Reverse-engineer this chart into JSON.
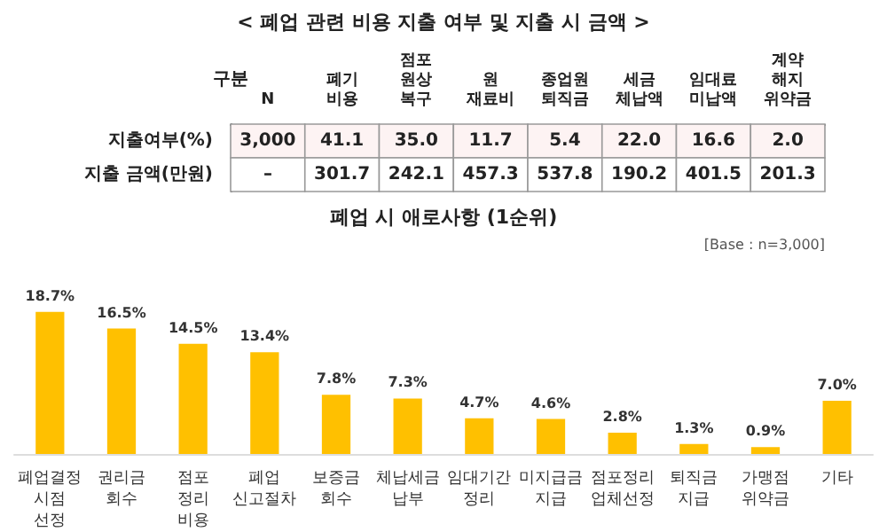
{
  "chart_data": [
    {
      "type": "other",
      "title": "< 폐업 관련 비용 지출 여부 및 지출 시 금액 >",
      "ylabel": "구분",
      "categories": [
        "N",
        "폐기\n비용",
        "점포\n원상\n복구",
        "원\n재료비",
        "종업원\n퇴직금",
        "세금\n체납액",
        "임대료\n미납액",
        "계약\n해지\n위약금"
      ],
      "y_categories": [
        "지출여부(%)",
        "지출 금액(만원)"
      ],
      "cells": [
        [
          "3,000",
          "41.1",
          "35.0",
          "11.7",
          "5.4",
          "22.0",
          "16.6",
          "2.0"
        ],
        [
          "–",
          "301.7",
          "242.1",
          "457.3",
          "537.8",
          "190.2",
          "401.5",
          "201.3"
        ]
      ]
    },
    {
      "type": "bar",
      "title": "폐업 시 애로사항 (1순위)",
      "annotations": [
        "[Base : n=3,000]"
      ],
      "categories": [
        "폐업결정\n시점\n선정",
        "권리금\n회수",
        "점포\n정리\n비용",
        "폐업\n신고절차",
        "보증금\n회수",
        "체납세금\n납부",
        "임대기간\n정리",
        "미지급금\n지급",
        "점포정리\n업체선정",
        "퇴직금\n지급",
        "가맹점\n위약금",
        "기타"
      ],
      "values": [
        18.7,
        16.5,
        14.5,
        13.4,
        7.8,
        7.3,
        4.7,
        4.6,
        2.8,
        1.3,
        0.9,
        7.0
      ],
      "value_labels": [
        "18.7%",
        "16.5%",
        "14.5%",
        "13.4%",
        "7.8%",
        "7.3%",
        "4.7%",
        "4.6%",
        "2.8%",
        "1.3%",
        "0.9%",
        "7.0%"
      ],
      "color": "#ffc000"
    }
  ]
}
